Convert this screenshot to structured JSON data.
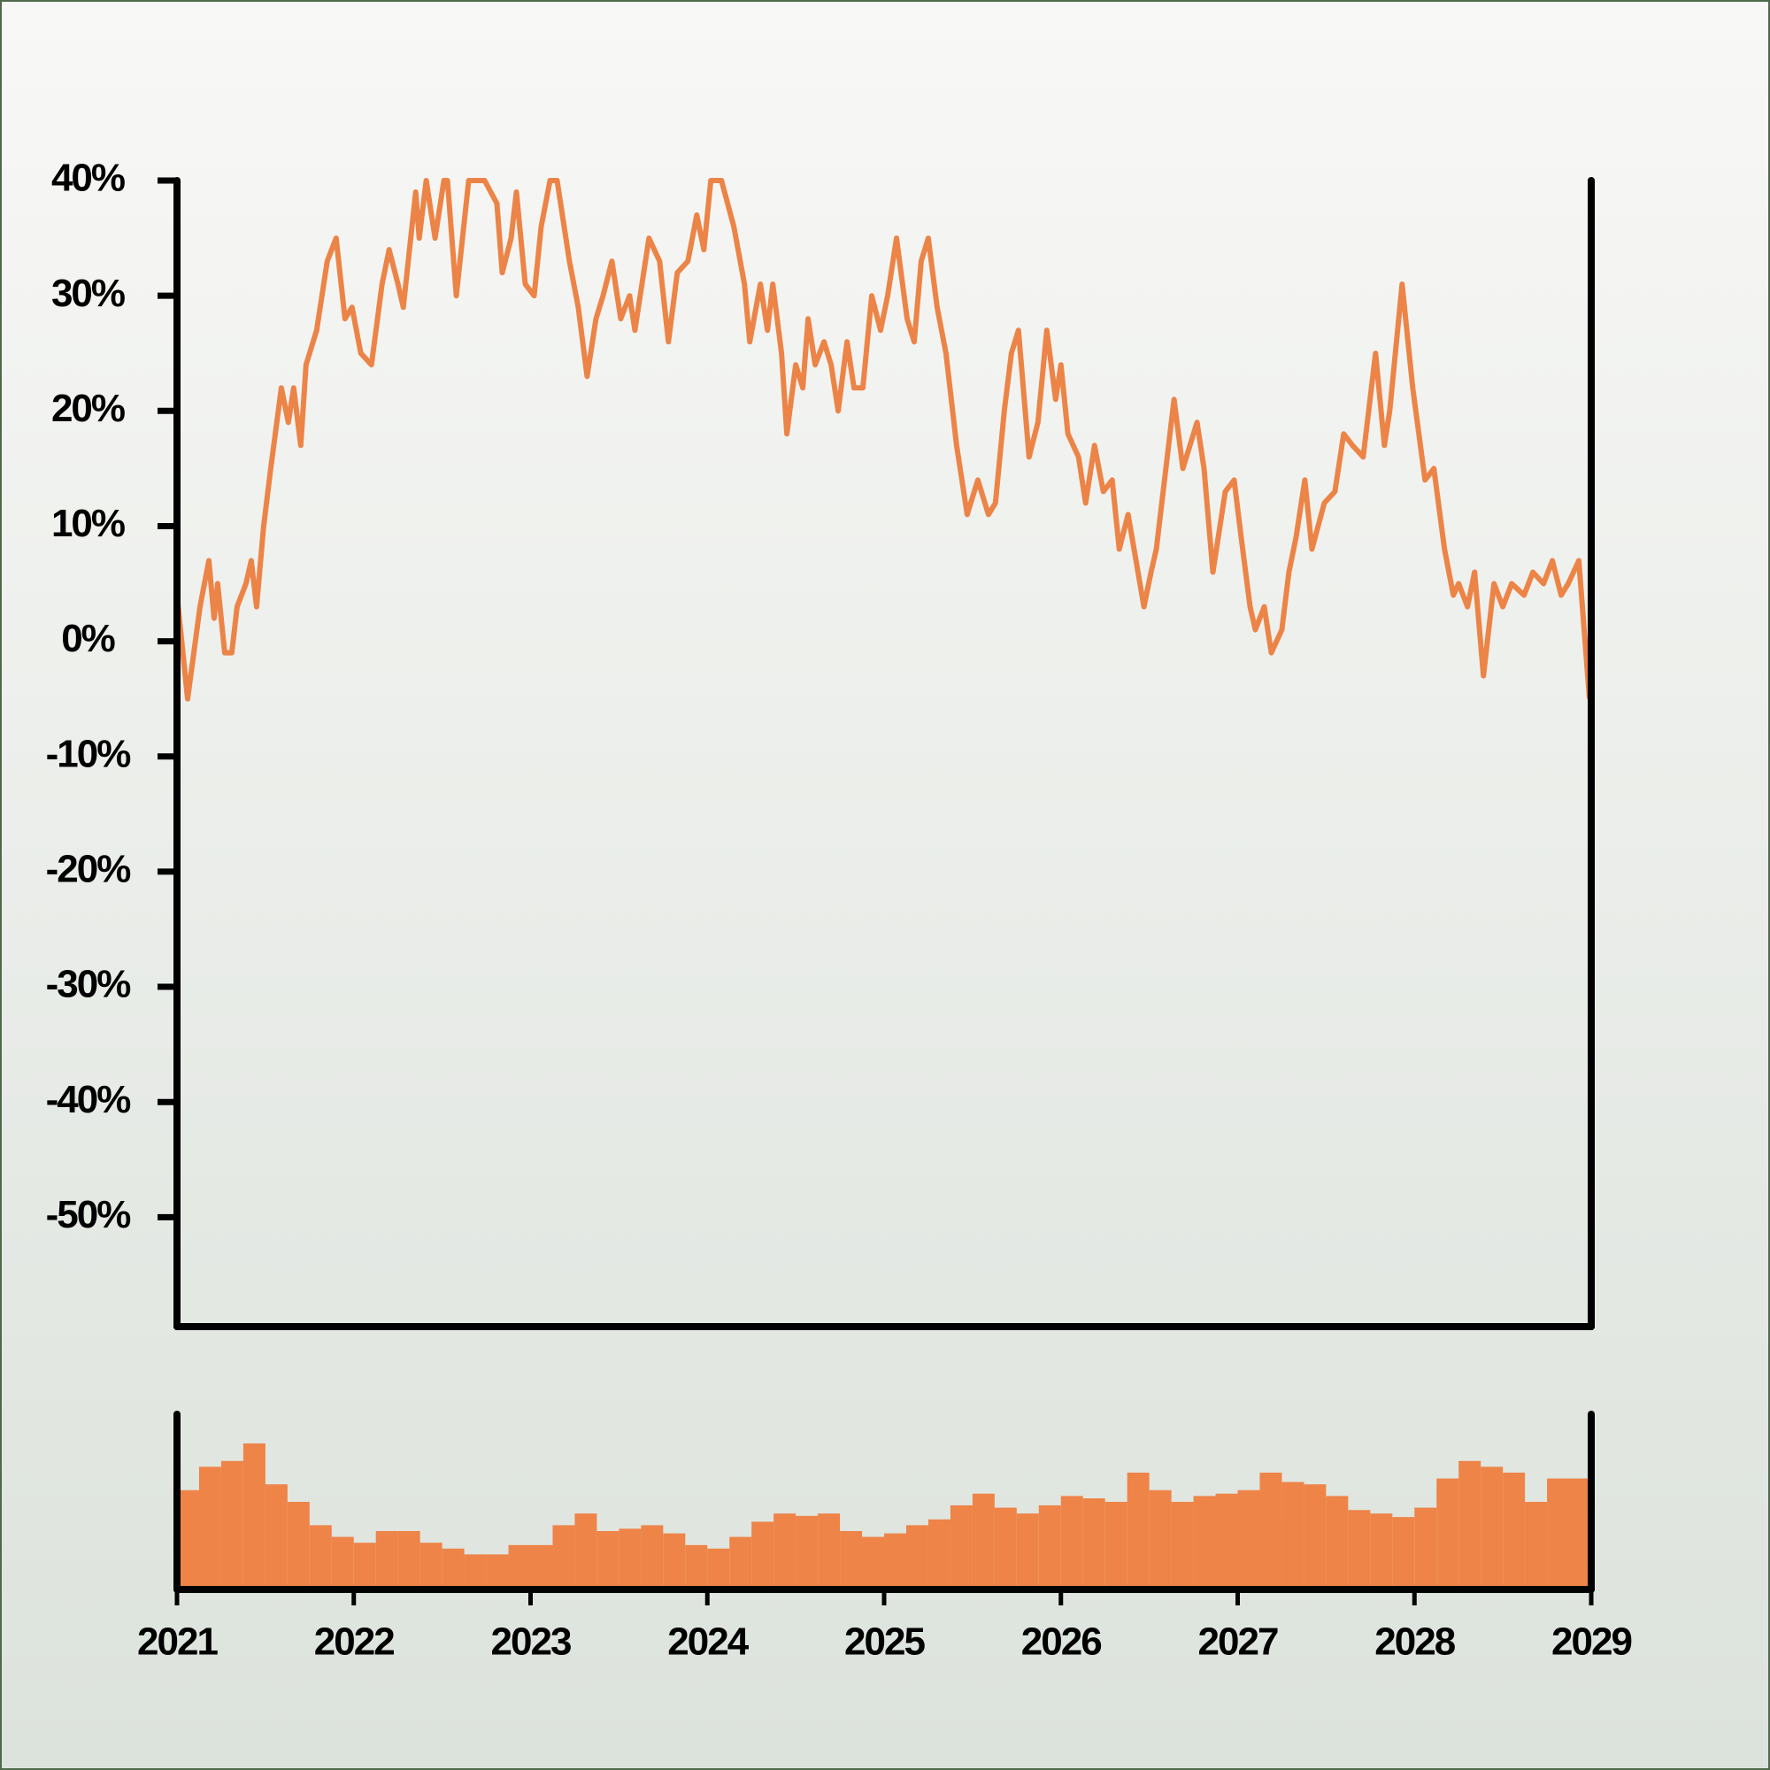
{
  "chart_data": [
    {
      "type": "line",
      "color": "#ec8447",
      "xlim": [
        2021,
        2029
      ],
      "ylim": [
        -59.5,
        40
      ],
      "yticks": [
        {
          "value": 40,
          "label": "40%"
        },
        {
          "value": 30,
          "label": "30%"
        },
        {
          "value": 20,
          "label": "20%"
        },
        {
          "value": 10,
          "label": "10%"
        },
        {
          "value": 0,
          "label": "0%"
        },
        {
          "value": -10,
          "label": "-10%"
        },
        {
          "value": -20,
          "label": "-20%"
        },
        {
          "value": -30,
          "label": "-30%"
        },
        {
          "value": -40,
          "label": "-40%"
        },
        {
          "value": -50,
          "label": "-50%"
        }
      ],
      "x": [
        2021.0,
        2021.06,
        2021.13,
        2021.18,
        2021.21,
        2021.23,
        2021.27,
        2021.31,
        2021.34,
        2021.39,
        2021.42,
        2021.45,
        2021.49,
        2021.53,
        2021.59,
        2021.63,
        2021.66,
        2021.7,
        2021.73,
        2021.79,
        2021.85,
        2021.9,
        2021.95,
        2021.99,
        2022.04,
        2022.1,
        2022.16,
        2022.2,
        2022.25,
        2022.28,
        2022.35,
        2022.37,
        2022.41,
        2022.46,
        2022.51,
        2022.53,
        2022.58,
        2022.65,
        2022.74,
        2022.81,
        2022.84,
        2022.89,
        2022.92,
        2022.97,
        2023.02,
        2023.06,
        2023.11,
        2023.15,
        2023.22,
        2023.27,
        2023.32,
        2023.37,
        2023.41,
        2023.46,
        2023.51,
        2023.56,
        2023.59,
        2023.67,
        2023.73,
        2023.78,
        2023.83,
        2023.89,
        2023.94,
        2023.98,
        2024.02,
        2024.08,
        2024.15,
        2024.21,
        2024.24,
        2024.3,
        2024.34,
        2024.37,
        2024.42,
        2024.45,
        2024.5,
        2024.54,
        2024.57,
        2024.61,
        2024.66,
        2024.7,
        2024.74,
        2024.79,
        2024.83,
        2024.88,
        2024.93,
        2024.98,
        2025.02,
        2025.07,
        2025.13,
        2025.17,
        2025.21,
        2025.25,
        2025.3,
        2025.35,
        2025.41,
        2025.47,
        2025.53,
        2025.59,
        2025.63,
        2025.68,
        2025.72,
        2025.76,
        2025.82,
        2025.87,
        2025.92,
        2025.97,
        2026.0,
        2026.04,
        2026.1,
        2026.14,
        2026.19,
        2026.24,
        2026.29,
        2026.33,
        2026.38,
        2026.47,
        2026.51,
        2026.54,
        2026.64,
        2026.69,
        2026.73,
        2026.77,
        2026.81,
        2026.86,
        2026.93,
        2026.98,
        2027.02,
        2027.07,
        2027.1,
        2027.15,
        2027.19,
        2027.25,
        2027.29,
        2027.33,
        2027.38,
        2027.42,
        2027.49,
        2027.55,
        2027.6,
        2027.65,
        2027.71,
        2027.78,
        2027.83,
        2027.86,
        2027.93,
        2027.99,
        2028.06,
        2028.11,
        2028.17,
        2028.22,
        2028.25,
        2028.3,
        2028.34,
        2028.39,
        2028.45,
        2028.5,
        2028.55,
        2028.62,
        2028.67,
        2028.73,
        2028.78,
        2028.83,
        2028.87,
        2028.93,
        2028.99
      ],
      "values": [
        4,
        -5,
        3,
        7,
        2,
        5,
        -1,
        -1,
        3,
        5,
        7,
        3,
        10,
        15,
        22,
        19,
        22,
        17,
        24,
        27,
        33,
        35,
        28,
        29,
        25,
        24,
        31,
        34,
        31,
        29,
        39,
        35,
        40,
        35,
        40,
        40,
        30,
        40,
        40,
        38,
        32,
        35,
        39,
        31,
        30,
        36,
        40,
        40,
        33,
        29,
        23,
        28,
        30,
        33,
        28,
        30,
        27,
        35,
        33,
        26,
        32,
        33,
        37,
        34,
        40,
        40,
        36,
        31,
        26,
        31,
        27,
        31,
        25,
        18,
        24,
        22,
        28,
        24,
        26,
        24,
        20,
        26,
        22,
        22,
        30,
        27,
        30,
        35,
        28,
        26,
        33,
        35,
        29,
        25,
        17,
        11,
        14,
        11,
        12,
        20,
        25,
        27,
        16,
        19,
        27,
        21,
        24,
        18,
        16,
        12,
        17,
        13,
        14,
        8,
        11,
        3,
        6,
        8,
        21,
        15,
        17,
        19,
        15,
        6,
        13,
        14,
        9,
        3,
        1,
        3,
        -1,
        1,
        6,
        9,
        14,
        8,
        12,
        13,
        18,
        17,
        16,
        25,
        17,
        20,
        31,
        22,
        14,
        15,
        8,
        4,
        5,
        3,
        6,
        -3,
        5,
        3,
        5,
        4,
        6,
        5,
        7,
        4,
        5,
        7,
        -5
      ]
    },
    {
      "type": "bar",
      "color": "#ee8448",
      "xlim": [
        2021,
        2029
      ],
      "xticks": [
        2021,
        2022,
        2023,
        2024,
        2025,
        2026,
        2027,
        2028,
        2029
      ],
      "ylim": [
        0,
        150
      ],
      "x": [
        2021.0625,
        2021.1875,
        2021.3125,
        2021.4375,
        2021.5625,
        2021.6875,
        2021.8125,
        2021.9375,
        2022.0625,
        2022.1875,
        2022.3125,
        2022.4375,
        2022.5625,
        2022.6875,
        2022.8125,
        2022.9375,
        2023.0625,
        2023.1875,
        2023.3125,
        2023.4375,
        2023.5625,
        2023.6875,
        2023.8125,
        2023.9375,
        2024.0625,
        2024.1875,
        2024.3125,
        2024.4375,
        2024.5625,
        2024.6875,
        2024.8125,
        2024.9375,
        2025.0625,
        2025.1875,
        2025.3125,
        2025.4375,
        2025.5625,
        2025.6875,
        2025.8125,
        2025.9375,
        2026.0625,
        2026.1875,
        2026.3125,
        2026.4375,
        2026.5625,
        2026.6875,
        2026.8125,
        2026.9375,
        2027.0625,
        2027.1875,
        2027.3125,
        2027.4375,
        2027.5625,
        2027.6875,
        2027.8125,
        2027.9375,
        2028.0625,
        2028.1875,
        2028.3125,
        2028.4375,
        2028.5625,
        2028.6875,
        2028.8125,
        2028.9375
      ],
      "values": [
        85,
        105,
        110,
        125,
        90,
        75,
        55,
        45,
        40,
        50,
        50,
        40,
        35,
        30,
        30,
        38,
        38,
        55,
        65,
        50,
        52,
        55,
        48,
        38,
        35,
        45,
        58,
        65,
        63,
        65,
        50,
        45,
        48,
        55,
        60,
        72,
        82,
        70,
        65,
        72,
        80,
        78,
        75,
        100,
        85,
        75,
        80,
        82,
        85,
        100,
        92,
        90,
        80,
        68,
        65,
        62,
        70,
        95,
        110,
        105,
        100,
        75,
        95,
        95
      ]
    }
  ]
}
